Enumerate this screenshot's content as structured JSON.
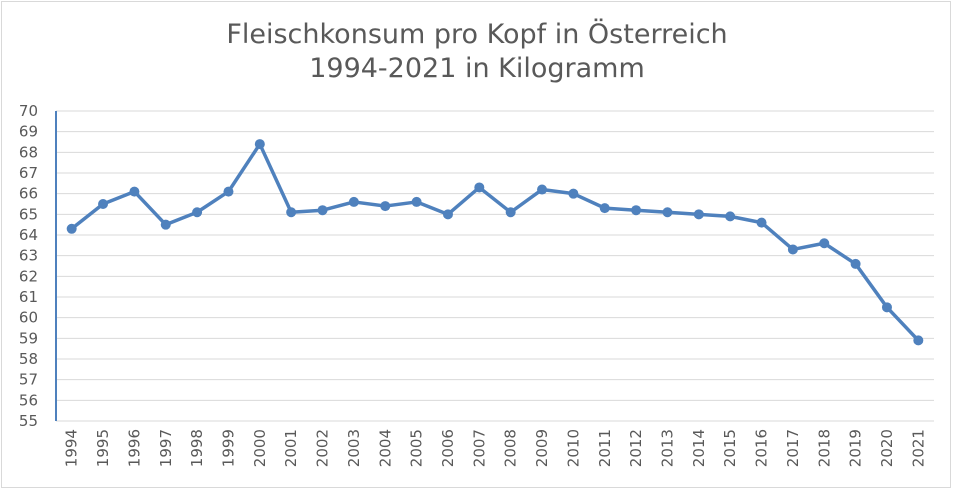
{
  "chart_data": {
    "type": "line",
    "title": "Fleischkonsum pro Kopf in Österreich",
    "subtitle": "1994-2021 in Kilogramm",
    "xlabel": "",
    "ylabel": "",
    "ylim": [
      55,
      70
    ],
    "grid": true,
    "legend": "none",
    "categories": [
      "1994",
      "1995",
      "1996",
      "1997",
      "1998",
      "1999",
      "2000",
      "2001",
      "2002",
      "2003",
      "2004",
      "2005",
      "2006",
      "2007",
      "2008",
      "2009",
      "2010",
      "2011",
      "2012",
      "2013",
      "2014",
      "2015",
      "2016",
      "2017",
      "2018",
      "2019",
      "2020",
      "2021"
    ],
    "series": [
      {
        "values": [
          64.3,
          65.5,
          66.1,
          64.5,
          65.1,
          66.1,
          68.4,
          65.1,
          65.2,
          65.6,
          65.4,
          65.6,
          65.0,
          66.3,
          65.1,
          66.2,
          66.0,
          65.3,
          65.2,
          65.1,
          65.0,
          64.9,
          64.6,
          63.3,
          63.6,
          62.6,
          60.5,
          58.9
        ]
      }
    ],
    "colors": {
      "line": "#4f81bd",
      "grid": "#d9d9d9",
      "axis": "#4f81bd",
      "text": "#595959"
    }
  }
}
